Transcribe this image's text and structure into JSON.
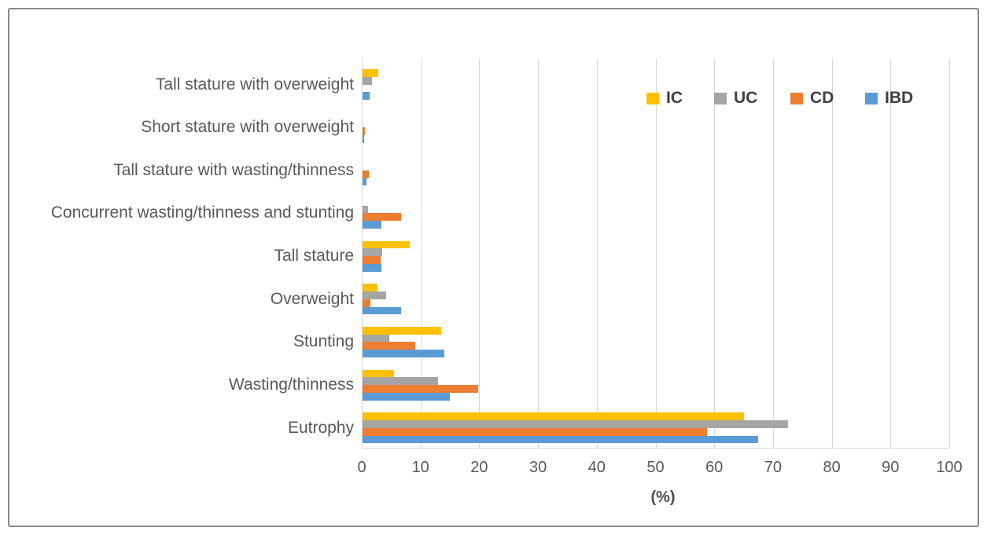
{
  "chart_data": {
    "type": "bar",
    "orientation": "horizontal",
    "title": "",
    "xlabel": "(%)",
    "ylabel": "",
    "xlim": [
      0,
      100
    ],
    "x_ticks": [
      0,
      10,
      20,
      30,
      40,
      50,
      60,
      70,
      80,
      90,
      100
    ],
    "grid": true,
    "gridline_color": "#d9d9d9",
    "legend_position": "inside-top-right",
    "categories_top_to_bottom": [
      "Tall stature with overweight",
      "Short stature with overweight",
      "Tall stature with wasting/thinness",
      "Concurrent wasting/thinness and stunting",
      "Tall stature",
      "Overweight",
      "Stunting",
      "Wasting/thinness",
      "Eutrophy"
    ],
    "series": [
      {
        "name": "IC",
        "color": "#FFC000",
        "values": [
          2.7,
          0,
          0,
          0,
          8.0,
          2.6,
          13.4,
          5.3,
          64.9
        ]
      },
      {
        "name": "UC",
        "color": "#A5A5A5",
        "values": [
          1.6,
          0,
          0,
          1.0,
          3.4,
          4.0,
          4.5,
          12.8,
          72.4
        ]
      },
      {
        "name": "CD",
        "color": "#ED7D31",
        "values": [
          0,
          0.4,
          1.1,
          6.6,
          3.1,
          1.3,
          9.0,
          19.7,
          58.6
        ]
      },
      {
        "name": "IBD",
        "color": "#5B9BD5",
        "values": [
          1.2,
          0.3,
          0.7,
          3.2,
          3.2,
          6.6,
          13.9,
          14.9,
          67.3
        ]
      }
    ],
    "legend": [
      "IC",
      "UC",
      "CD",
      "IBD"
    ]
  }
}
